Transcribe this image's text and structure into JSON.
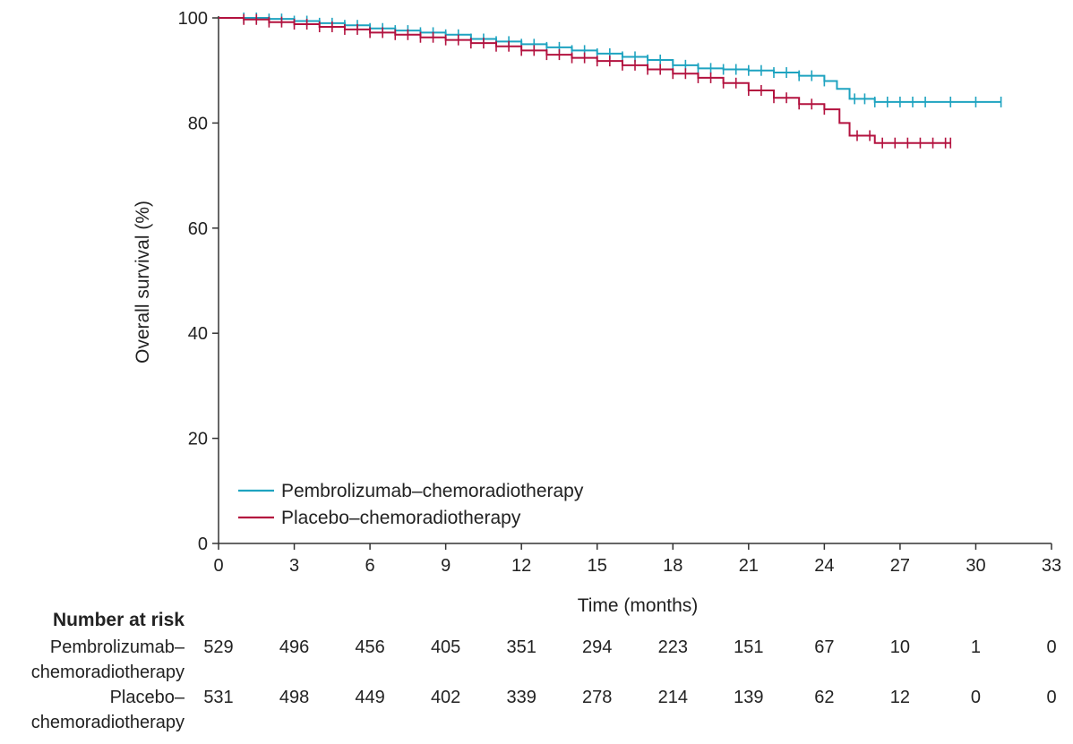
{
  "chart_data": {
    "type": "line",
    "title": "",
    "xlabel": "Time (months)",
    "ylabel": "Overall survival (%)",
    "xlim": [
      0,
      33
    ],
    "ylim": [
      0,
      100
    ],
    "x_ticks": [
      0,
      3,
      6,
      9,
      12,
      15,
      18,
      21,
      24,
      27,
      30,
      33
    ],
    "y_ticks": [
      0,
      20,
      40,
      60,
      80,
      100
    ],
    "grid": false,
    "legend_position": "bottom-left",
    "series": [
      {
        "name": "Pembrolizumab–chemoradiotherapy",
        "color": "#1ea3c0",
        "points": [
          [
            0,
            100
          ],
          [
            1,
            100
          ],
          [
            2,
            99.8
          ],
          [
            3,
            99.4
          ],
          [
            4,
            99
          ],
          [
            5,
            98.6
          ],
          [
            6,
            98
          ],
          [
            7,
            97.6
          ],
          [
            8,
            97.2
          ],
          [
            9,
            96.8
          ],
          [
            10,
            96
          ],
          [
            11,
            95.5
          ],
          [
            12,
            95
          ],
          [
            13,
            94.4
          ],
          [
            14,
            93.8
          ],
          [
            15,
            93.2
          ],
          [
            16,
            92.6
          ],
          [
            17,
            92
          ],
          [
            18,
            91
          ],
          [
            19,
            90.4
          ],
          [
            20,
            90.2
          ],
          [
            21,
            90
          ],
          [
            22,
            89.6
          ],
          [
            23,
            89
          ],
          [
            24,
            88
          ],
          [
            24.5,
            86.5
          ],
          [
            25,
            84.6
          ],
          [
            26,
            84
          ],
          [
            31,
            84
          ]
        ],
        "censor_ticks": [
          1,
          1.5,
          2,
          2.5,
          3,
          3.5,
          4,
          4.5,
          5,
          5.5,
          6,
          6.5,
          7,
          7.5,
          8,
          8.5,
          9,
          9.5,
          10,
          10.5,
          11,
          11.5,
          12,
          12.5,
          13,
          13.5,
          14,
          14.5,
          15,
          15.5,
          16,
          16.5,
          17,
          17.5,
          18,
          18.5,
          19,
          19.5,
          20,
          20.5,
          21,
          21.5,
          22,
          22.5,
          23,
          23.5,
          24,
          25.2,
          25.6,
          26,
          26.5,
          27,
          27.5,
          28,
          29,
          30,
          31
        ]
      },
      {
        "name": "Placebo–chemoradiotherapy",
        "color": "#b3123f",
        "points": [
          [
            0,
            100
          ],
          [
            1,
            99.7
          ],
          [
            2,
            99.2
          ],
          [
            3,
            98.8
          ],
          [
            4,
            98.3
          ],
          [
            5,
            97.8
          ],
          [
            6,
            97.2
          ],
          [
            7,
            96.8
          ],
          [
            8,
            96.3
          ],
          [
            9,
            95.8
          ],
          [
            10,
            95.2
          ],
          [
            11,
            94.6
          ],
          [
            12,
            93.8
          ],
          [
            13,
            93
          ],
          [
            14,
            92.4
          ],
          [
            15,
            91.8
          ],
          [
            16,
            91
          ],
          [
            17,
            90.2
          ],
          [
            18,
            89.4
          ],
          [
            19,
            88.6
          ],
          [
            20,
            87.6
          ],
          [
            21,
            86.2
          ],
          [
            22,
            84.8
          ],
          [
            23,
            83.6
          ],
          [
            24,
            82.6
          ],
          [
            24.6,
            80
          ],
          [
            25,
            77.6
          ],
          [
            26,
            76.2
          ],
          [
            29,
            76.2
          ]
        ],
        "censor_ticks": [
          1,
          1.5,
          2,
          2.5,
          3,
          3.5,
          4,
          4.5,
          5,
          5.5,
          6,
          6.5,
          7,
          7.5,
          8,
          8.5,
          9,
          9.5,
          10,
          10.5,
          11,
          11.5,
          12,
          12.5,
          13,
          13.5,
          14,
          14.5,
          15,
          15.5,
          16,
          16.5,
          17,
          17.5,
          18,
          18.5,
          19,
          19.5,
          20,
          20.5,
          21,
          21.5,
          22,
          22.5,
          23,
          23.5,
          24,
          25.3,
          25.8,
          26.3,
          26.8,
          27.3,
          27.8,
          28.3,
          28.8,
          29
        ]
      }
    ],
    "number_at_risk": {
      "title": "Number at risk",
      "times": [
        0,
        3,
        6,
        9,
        12,
        15,
        18,
        21,
        24,
        27,
        30,
        33
      ],
      "rows": [
        {
          "label_line1": "Pembrolizumab–",
          "label_line2": "chemoradiotherapy",
          "values": [
            "529",
            "496",
            "456",
            "405",
            "351",
            "294",
            "223",
            "151",
            "67",
            "10",
            "1",
            "0"
          ]
        },
        {
          "label_line1": "Placebo–",
          "label_line2": "chemoradiotherapy",
          "values": [
            "531",
            "498",
            "449",
            "402",
            "339",
            "278",
            "214",
            "139",
            "62",
            "12",
            "0",
            "0"
          ]
        }
      ]
    }
  }
}
